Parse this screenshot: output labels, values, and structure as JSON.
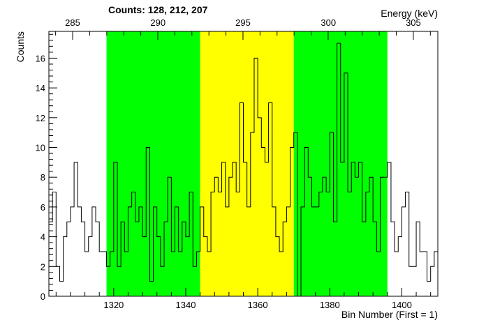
{
  "counts_label": "Counts:   128,   212,   207",
  "chart_data": {
    "type": "histogram",
    "xlabel": "Bin Number (First = 1)",
    "ylabel": "Counts",
    "top_axis_label": "Energy (keV)",
    "xlim": [
      1302,
      1410
    ],
    "ylim": [
      0,
      17.8
    ],
    "top_axis_ticks": [
      285,
      290,
      295,
      300,
      305
    ],
    "top_axis_tick_bins": [
      1308.6,
      1332.3,
      1355.9,
      1379.6,
      1403.2
    ],
    "bottom_axis_ticks": [
      1320,
      1340,
      1360,
      1380,
      1400
    ],
    "y_ticks": [
      0,
      2,
      4,
      6,
      8,
      10,
      12,
      14,
      16
    ],
    "regions": [
      {
        "name": "background-left",
        "from": 1318,
        "to": 1344,
        "color": "#00ff00"
      },
      {
        "name": "peak",
        "from": 1344,
        "to": 1370,
        "color": "#ffff00"
      },
      {
        "name": "background-right",
        "from": 1370,
        "to": 1396,
        "color": "#00ff00"
      }
    ],
    "bin_start": 1302,
    "bin_width": 1,
    "values": [
      5,
      7,
      2,
      1,
      4,
      5,
      6,
      9,
      6,
      5,
      3,
      4,
      6,
      5,
      3,
      3,
      2,
      3,
      9,
      2,
      5,
      3,
      6,
      7,
      5,
      6,
      4,
      10,
      1,
      6,
      4,
      2,
      5,
      8,
      3,
      6,
      3,
      5,
      4,
      7,
      2,
      3,
      6,
      4,
      3,
      7,
      8,
      7,
      9,
      6,
      8,
      9,
      7,
      13,
      9,
      6,
      11,
      16,
      12,
      10,
      9,
      13,
      6,
      4,
      3,
      5,
      6,
      10,
      11,
      0,
      6,
      10,
      8,
      6,
      6,
      7,
      8,
      7,
      11,
      5,
      17,
      9,
      15,
      7,
      9,
      8,
      9,
      5,
      7,
      8,
      5,
      3,
      8,
      8,
      9,
      5,
      3,
      4,
      6,
      7,
      2,
      2,
      5,
      3,
      3,
      1,
      2,
      3
    ]
  }
}
